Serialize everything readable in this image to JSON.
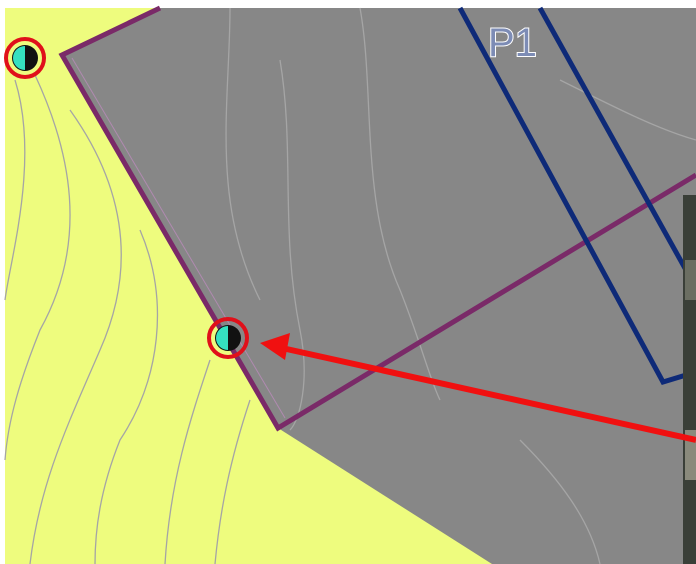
{
  "labels": {
    "parcel": "P1"
  }
}
